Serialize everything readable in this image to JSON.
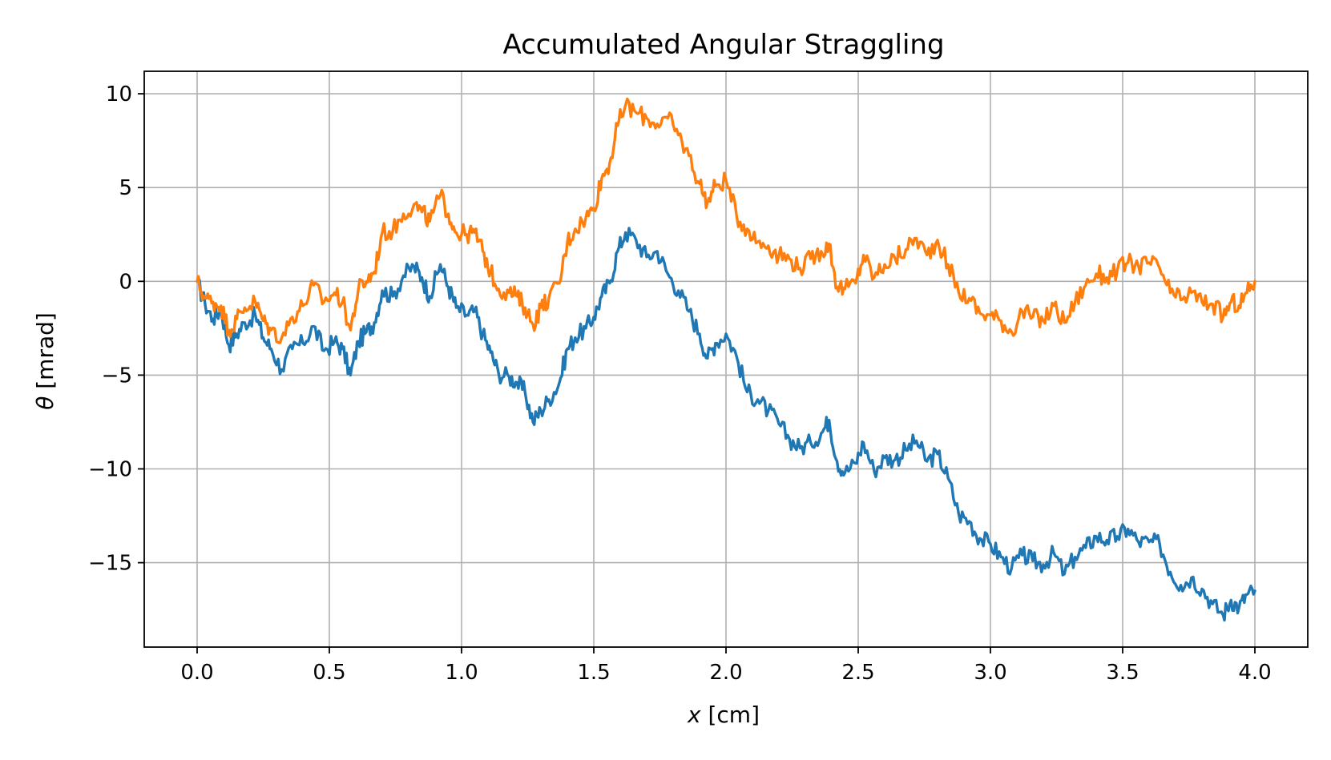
{
  "chart_data": {
    "type": "line",
    "title": "Accumulated Angular Straggling",
    "xlabel_var": "x",
    "xlabel_unit": " [cm]",
    "ylabel_var": "θ",
    "ylabel_unit": " [mrad]",
    "xlim": [
      -0.2,
      4.2
    ],
    "ylim": [
      -19.5,
      11.2
    ],
    "xticks": [
      0.0,
      0.5,
      1.0,
      1.5,
      2.0,
      2.5,
      3.0,
      3.5,
      4.0
    ],
    "xtick_labels": [
      "0.0",
      "0.5",
      "1.0",
      "1.5",
      "2.0",
      "2.5",
      "3.0",
      "3.5",
      "4.0"
    ],
    "yticks": [
      10,
      5,
      0,
      -5,
      -10,
      -15
    ],
    "ytick_labels": [
      "10",
      "5",
      "0",
      "−5",
      "−10",
      "−15"
    ],
    "grid": true,
    "series": [
      {
        "color": "#1f77b4",
        "points": [
          [
            0.0,
            0.0
          ],
          [
            0.03,
            -1.2
          ],
          [
            0.06,
            -2.0
          ],
          [
            0.09,
            -1.5
          ],
          [
            0.12,
            -3.4
          ],
          [
            0.15,
            -2.8
          ],
          [
            0.18,
            -2.2
          ],
          [
            0.22,
            -1.8
          ],
          [
            0.25,
            -3.0
          ],
          [
            0.28,
            -3.6
          ],
          [
            0.32,
            -4.7
          ],
          [
            0.36,
            -3.6
          ],
          [
            0.4,
            -3.3
          ],
          [
            0.44,
            -2.4
          ],
          [
            0.48,
            -3.7
          ],
          [
            0.52,
            -3.2
          ],
          [
            0.55,
            -3.6
          ],
          [
            0.58,
            -5.0
          ],
          [
            0.61,
            -3.2
          ],
          [
            0.64,
            -2.7
          ],
          [
            0.67,
            -2.2
          ],
          [
            0.7,
            -0.5
          ],
          [
            0.74,
            -0.8
          ],
          [
            0.78,
            0.3
          ],
          [
            0.82,
            0.8
          ],
          [
            0.85,
            0.2
          ],
          [
            0.88,
            -0.8
          ],
          [
            0.92,
            0.9
          ],
          [
            0.95,
            -0.3
          ],
          [
            0.98,
            -1.4
          ],
          [
            1.02,
            -1.8
          ],
          [
            1.05,
            -1.6
          ],
          [
            1.08,
            -2.8
          ],
          [
            1.11,
            -3.8
          ],
          [
            1.14,
            -4.9
          ],
          [
            1.18,
            -5.1
          ],
          [
            1.21,
            -5.4
          ],
          [
            1.24,
            -5.9
          ],
          [
            1.27,
            -7.5
          ],
          [
            1.3,
            -6.9
          ],
          [
            1.33,
            -6.3
          ],
          [
            1.37,
            -5.4
          ],
          [
            1.4,
            -3.6
          ],
          [
            1.43,
            -3.0
          ],
          [
            1.47,
            -2.5
          ],
          [
            1.5,
            -1.9
          ],
          [
            1.53,
            -0.8
          ],
          [
            1.56,
            -0.1
          ],
          [
            1.59,
            1.6
          ],
          [
            1.62,
            2.6
          ],
          [
            1.66,
            2.2
          ],
          [
            1.7,
            1.3
          ],
          [
            1.74,
            1.6
          ],
          [
            1.78,
            0.4
          ],
          [
            1.82,
            -0.5
          ],
          [
            1.86,
            -1.6
          ],
          [
            1.9,
            -2.8
          ],
          [
            1.93,
            -4.1
          ],
          [
            1.96,
            -3.3
          ],
          [
            2.0,
            -2.8
          ],
          [
            2.04,
            -4.0
          ],
          [
            2.08,
            -5.9
          ],
          [
            2.12,
            -6.3
          ],
          [
            2.16,
            -6.9
          ],
          [
            2.2,
            -7.6
          ],
          [
            2.24,
            -8.4
          ],
          [
            2.28,
            -8.9
          ],
          [
            2.32,
            -8.6
          ],
          [
            2.36,
            -8.1
          ],
          [
            2.39,
            -7.4
          ],
          [
            2.42,
            -9.6
          ],
          [
            2.45,
            -10.2
          ],
          [
            2.49,
            -9.7
          ],
          [
            2.52,
            -8.6
          ],
          [
            2.56,
            -10.1
          ],
          [
            2.6,
            -9.4
          ],
          [
            2.64,
            -9.5
          ],
          [
            2.68,
            -9.0
          ],
          [
            2.72,
            -8.5
          ],
          [
            2.76,
            -9.6
          ],
          [
            2.8,
            -9.2
          ],
          [
            2.84,
            -10.5
          ],
          [
            2.88,
            -12.4
          ],
          [
            2.92,
            -12.8
          ],
          [
            2.96,
            -13.7
          ],
          [
            3.0,
            -14.0
          ],
          [
            3.04,
            -14.7
          ],
          [
            3.08,
            -15.3
          ],
          [
            3.12,
            -14.6
          ],
          [
            3.16,
            -14.9
          ],
          [
            3.2,
            -15.1
          ],
          [
            3.24,
            -14.5
          ],
          [
            3.28,
            -15.6
          ],
          [
            3.32,
            -14.7
          ],
          [
            3.36,
            -14.2
          ],
          [
            3.4,
            -13.6
          ],
          [
            3.44,
            -13.8
          ],
          [
            3.48,
            -13.6
          ],
          [
            3.52,
            -13.2
          ],
          [
            3.56,
            -13.9
          ],
          [
            3.6,
            -13.9
          ],
          [
            3.64,
            -14.0
          ],
          [
            3.68,
            -15.5
          ],
          [
            3.72,
            -16.2
          ],
          [
            3.76,
            -15.8
          ],
          [
            3.8,
            -16.4
          ],
          [
            3.84,
            -17.2
          ],
          [
            3.88,
            -17.8
          ],
          [
            3.91,
            -17.0
          ],
          [
            3.94,
            -17.4
          ],
          [
            3.97,
            -16.7
          ],
          [
            4.0,
            -16.5
          ]
        ]
      },
      {
        "color": "#ff7f0e",
        "points": [
          [
            0.0,
            0.0
          ],
          [
            0.03,
            -0.9
          ],
          [
            0.06,
            -1.1
          ],
          [
            0.09,
            -1.3
          ],
          [
            0.12,
            -2.6
          ],
          [
            0.15,
            -2.0
          ],
          [
            0.18,
            -1.4
          ],
          [
            0.22,
            -1.1
          ],
          [
            0.25,
            -2.1
          ],
          [
            0.28,
            -2.6
          ],
          [
            0.32,
            -3.0
          ],
          [
            0.36,
            -1.9
          ],
          [
            0.4,
            -1.3
          ],
          [
            0.44,
            -0.2
          ],
          [
            0.48,
            -1.1
          ],
          [
            0.52,
            -0.6
          ],
          [
            0.55,
            -1.1
          ],
          [
            0.58,
            -2.6
          ],
          [
            0.61,
            -0.4
          ],
          [
            0.64,
            0.0
          ],
          [
            0.67,
            0.5
          ],
          [
            0.7,
            2.6
          ],
          [
            0.74,
            2.7
          ],
          [
            0.78,
            3.6
          ],
          [
            0.82,
            4.1
          ],
          [
            0.85,
            3.7
          ],
          [
            0.88,
            3.2
          ],
          [
            0.92,
            4.6
          ],
          [
            0.95,
            3.6
          ],
          [
            0.98,
            2.6
          ],
          [
            1.02,
            2.5
          ],
          [
            1.05,
            2.6
          ],
          [
            1.08,
            1.6
          ],
          [
            1.11,
            0.5
          ],
          [
            1.14,
            -0.4
          ],
          [
            1.18,
            -0.6
          ],
          [
            1.21,
            -0.8
          ],
          [
            1.24,
            -1.4
          ],
          [
            1.27,
            -2.3
          ],
          [
            1.3,
            -1.4
          ],
          [
            1.33,
            -0.9
          ],
          [
            1.37,
            -0.1
          ],
          [
            1.4,
            2.1
          ],
          [
            1.43,
            2.8
          ],
          [
            1.47,
            3.4
          ],
          [
            1.5,
            3.9
          ],
          [
            1.53,
            5.5
          ],
          [
            1.56,
            6.3
          ],
          [
            1.59,
            8.3
          ],
          [
            1.62,
            9.4
          ],
          [
            1.66,
            9.0
          ],
          [
            1.7,
            8.7
          ],
          [
            1.74,
            8.4
          ],
          [
            1.78,
            8.7
          ],
          [
            1.82,
            7.8
          ],
          [
            1.86,
            6.7
          ],
          [
            1.9,
            5.2
          ],
          [
            1.93,
            4.2
          ],
          [
            1.96,
            5.1
          ],
          [
            2.0,
            5.4
          ],
          [
            2.04,
            3.5
          ],
          [
            2.08,
            2.8
          ],
          [
            2.12,
            2.1
          ],
          [
            2.16,
            1.9
          ],
          [
            2.2,
            1.4
          ],
          [
            2.24,
            1.2
          ],
          [
            2.28,
            0.7
          ],
          [
            2.32,
            1.2
          ],
          [
            2.36,
            1.6
          ],
          [
            2.39,
            2.0
          ],
          [
            2.42,
            -0.3
          ],
          [
            2.45,
            -0.4
          ],
          [
            2.49,
            -0.1
          ],
          [
            2.52,
            1.4
          ],
          [
            2.56,
            0.2
          ],
          [
            2.6,
            0.9
          ],
          [
            2.64,
            1.2
          ],
          [
            2.68,
            1.7
          ],
          [
            2.72,
            2.3
          ],
          [
            2.76,
            1.4
          ],
          [
            2.8,
            2.2
          ],
          [
            2.84,
            0.9
          ],
          [
            2.88,
            -0.6
          ],
          [
            2.92,
            -0.9
          ],
          [
            2.96,
            -1.7
          ],
          [
            3.0,
            -1.8
          ],
          [
            3.04,
            -2.1
          ],
          [
            3.08,
            -2.7
          ],
          [
            3.12,
            -1.6
          ],
          [
            3.16,
            -1.9
          ],
          [
            3.2,
            -2.1
          ],
          [
            3.24,
            -1.3
          ],
          [
            3.28,
            -2.2
          ],
          [
            3.32,
            -1.1
          ],
          [
            3.36,
            -0.2
          ],
          [
            3.4,
            0.4
          ],
          [
            3.44,
            0.2
          ],
          [
            3.48,
            0.6
          ],
          [
            3.52,
            1.0
          ],
          [
            3.56,
            0.8
          ],
          [
            3.6,
            1.0
          ],
          [
            3.64,
            0.7
          ],
          [
            3.68,
            -0.6
          ],
          [
            3.72,
            -1.0
          ],
          [
            3.76,
            -0.6
          ],
          [
            3.8,
            -1.1
          ],
          [
            3.84,
            -1.2
          ],
          [
            3.88,
            -1.9
          ],
          [
            3.91,
            -1.1
          ],
          [
            3.94,
            -1.3
          ],
          [
            3.97,
            -0.6
          ],
          [
            4.0,
            0.0
          ]
        ]
      }
    ]
  }
}
